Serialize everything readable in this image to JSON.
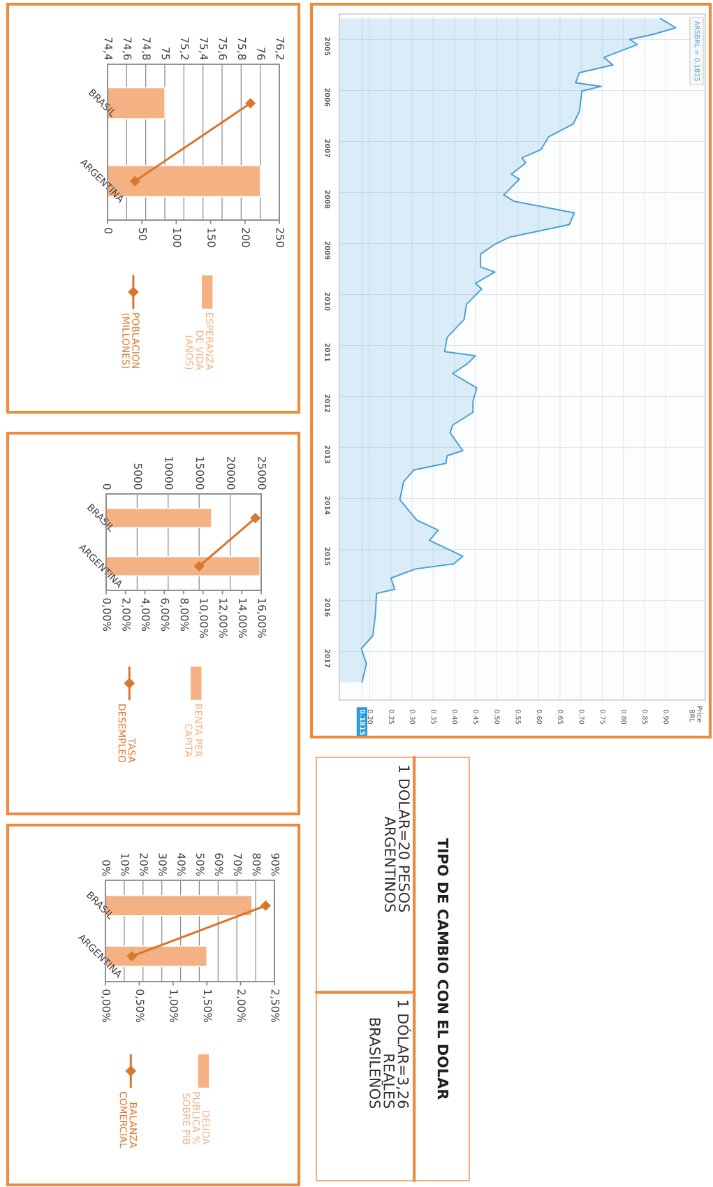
{
  "chart_data": [
    {
      "type": "area",
      "orientation": "horizontal",
      "annotations": [
        "Price BRL"
      ],
      "legend": "top right",
      "grid": true,
      "series": [
        {
          "name": "ARSBRL = 0.1815",
          "color": "#4a9fd8",
          "x": [
            2004.59,
            2004.77,
            2004.9,
            2005.0,
            2005.1,
            2005.35,
            2005.5,
            2005.65,
            2005.85,
            2005.92,
            2006.01,
            2006.41,
            2006.66,
            2006.91,
            2007.16,
            2007.32,
            2007.42,
            2007.64,
            2007.74,
            2008.05,
            2008.17,
            2008.4,
            2008.63,
            2008.88,
            2009.03,
            2009.21,
            2009.46,
            2009.56,
            2009.78,
            2009.89,
            2010.19,
            2010.49,
            2010.84,
            2011.12,
            2011.2,
            2011.35,
            2011.55,
            2011.83,
            2012.1,
            2012.31,
            2012.56,
            2012.71,
            2013.06,
            2013.16,
            2013.31,
            2013.44,
            2013.67,
            2014.02,
            2014.42,
            2014.62,
            2014.82,
            2015.13,
            2015.28,
            2015.38,
            2015.56,
            2015.78,
            2015.86,
            2016.29,
            2016.69,
            2016.94,
            2017.24,
            2017.6
          ],
          "values": [
            0.888,
            0.924,
            0.87,
            0.815,
            0.833,
            0.754,
            0.775,
            0.696,
            0.687,
            0.748,
            0.702,
            0.696,
            0.681,
            0.623,
            0.605,
            0.56,
            0.569,
            0.535,
            0.554,
            0.517,
            0.541,
            0.684,
            0.672,
            0.529,
            0.493,
            0.462,
            0.462,
            0.496,
            0.45,
            0.465,
            0.429,
            0.423,
            0.383,
            0.377,
            0.45,
            0.432,
            0.396,
            0.453,
            0.444,
            0.444,
            0.396,
            0.39,
            0.42,
            0.383,
            0.38,
            0.304,
            0.28,
            0.271,
            0.311,
            0.362,
            0.341,
            0.42,
            0.399,
            0.308,
            0.25,
            0.259,
            0.216,
            0.213,
            0.207,
            0.18,
            0.192,
            0.1815
          ]
        }
      ],
      "xlim": [
        0.128,
        0.994
      ],
      "xticks": [
        {
          "value": 0.1815,
          "label": "0.1815"
        },
        {
          "value": 0.2,
          "label": "0.20"
        },
        {
          "value": 0.25,
          "label": "0.25"
        },
        {
          "value": 0.3,
          "label": "0.30"
        },
        {
          "value": 0.35,
          "label": "0.35"
        },
        {
          "value": 0.4,
          "label": "0.40"
        },
        {
          "value": 0.45,
          "label": "0.45"
        },
        {
          "value": 0.5,
          "label": "0.50"
        },
        {
          "value": 0.55,
          "label": "0.55"
        },
        {
          "value": 0.6,
          "label": "0.60"
        },
        {
          "value": 0.65,
          "label": "0.65"
        },
        {
          "value": 0.7,
          "label": "0.70"
        },
        {
          "value": 0.75,
          "label": "0.75"
        },
        {
          "value": 0.8,
          "label": "0.80"
        },
        {
          "value": 0.85,
          "label": "0.85"
        },
        {
          "value": 0.9,
          "label": "0.90"
        }
      ],
      "ylim": [
        2017.95,
        2004.5
      ],
      "yticks": [
        2005,
        2006,
        2007,
        2008,
        2009,
        2010,
        2011,
        2012,
        2013,
        2014,
        2015,
        2016,
        2017
      ]
    },
    {
      "type": "bar",
      "orientation": "horizontal",
      "categories": [
        "BRASIL",
        "ARGENTINA"
      ],
      "legend": "bottom",
      "grid": "x2",
      "marker": "diamond",
      "series": [
        {
          "name": "ESPERANZA DE VIDA (AÑOS)",
          "color": "#f4b183",
          "values": [
            75.0,
            76.0
          ],
          "axis": "x2"
        },
        {
          "name": "POBLACION (MILLONES)",
          "type": "line",
          "color": "#d9782d",
          "values": [
            208,
            40
          ]
        }
      ],
      "x2lim": [
        74.4,
        76.2
      ],
      "x2ticks": [
        {
          "value": 74.4,
          "label": "74,4"
        },
        {
          "value": 74.6,
          "label": "74,6"
        },
        {
          "value": 74.8,
          "label": "74,8"
        },
        {
          "value": 75,
          "label": "75"
        },
        {
          "value": 75.2,
          "label": "75,2"
        },
        {
          "value": 75.4,
          "label": "75,4"
        },
        {
          "value": 75.6,
          "label": "75,6"
        },
        {
          "value": 75.8,
          "label": "75,8"
        },
        {
          "value": 76,
          "label": "76"
        },
        {
          "value": 76.2,
          "label": "76,2"
        }
      ],
      "xlim": [
        0,
        250
      ],
      "xticks": [
        0,
        50,
        100,
        150,
        200,
        250
      ]
    },
    {
      "type": "bar",
      "orientation": "horizontal",
      "categories": [
        "BRASIL",
        "ARGENTINA"
      ],
      "legend": "bottom",
      "grid": "x2",
      "marker": "diamond",
      "series": [
        {
          "name": "RENTA PER CAPITA",
          "color": "#f4b183",
          "values": [
            17000,
            24800
          ],
          "axis": "x2"
        },
        {
          "name": "TASA DESEMPLEO",
          "type": "line",
          "color": "#d9782d",
          "values": [
            15.4,
            9.6
          ]
        }
      ],
      "x2lim": [
        0,
        25000
      ],
      "x2ticks": [
        0,
        5000,
        10000,
        15000,
        20000,
        25000
      ],
      "xlim": [
        0,
        16
      ],
      "xticks": [
        {
          "value": 0,
          "label": "0,00%"
        },
        {
          "value": 2,
          "label": "2,00%"
        },
        {
          "value": 4,
          "label": "4,00%"
        },
        {
          "value": 6,
          "label": "6,00%"
        },
        {
          "value": 8,
          "label": "8,00%"
        },
        {
          "value": 10,
          "label": "10,00%"
        },
        {
          "value": 12,
          "label": "12,00%"
        },
        {
          "value": 14,
          "label": "14,00%"
        },
        {
          "value": 16,
          "label": "16,00%"
        }
      ]
    },
    {
      "type": "bar",
      "orientation": "horizontal",
      "categories": [
        "BRASIL",
        "ARGENTINA"
      ],
      "legend": "bottom",
      "grid": "x2",
      "marker": "diamond",
      "series": [
        {
          "name": "DEUDA PUBLICA % SOBRE PIB",
          "color": "#f4b183",
          "values": [
            78,
            54
          ],
          "axis": "x2"
        },
        {
          "name": "BALANZA COMERCIAL",
          "type": "line",
          "color": "#d9782d",
          "values": [
            2.37,
            0.39
          ]
        }
      ],
      "x2lim": [
        0,
        90
      ],
      "x2ticks": [
        {
          "value": 0,
          "label": "0%"
        },
        {
          "value": 10,
          "label": "10%"
        },
        {
          "value": 20,
          "label": "20%"
        },
        {
          "value": 30,
          "label": "30%"
        },
        {
          "value": 40,
          "label": "40%"
        },
        {
          "value": 50,
          "label": "50%"
        },
        {
          "value": 60,
          "label": "60%"
        },
        {
          "value": 70,
          "label": "70%"
        },
        {
          "value": 80,
          "label": "80%"
        },
        {
          "value": 90,
          "label": "90%"
        }
      ],
      "xlim": [
        0,
        2.5
      ],
      "xticks": [
        {
          "value": 0,
          "label": "0,00%"
        },
        {
          "value": 0.5,
          "label": "0,50%"
        },
        {
          "value": 1,
          "label": "1,00%"
        },
        {
          "value": 1.5,
          "label": "1,50%"
        },
        {
          "value": 2,
          "label": "2,00%"
        },
        {
          "value": 2.5,
          "label": "2,50%"
        }
      ]
    },
    {
      "type": "other",
      "title": "TIPO DE CAMBIO CON EL DOLAR",
      "annotations": [
        "1 DOLAR=20 PESOS ARGENTINOS",
        "1 DÓLAR=3,26 REALES BRASILEÑOS"
      ]
    }
  ]
}
